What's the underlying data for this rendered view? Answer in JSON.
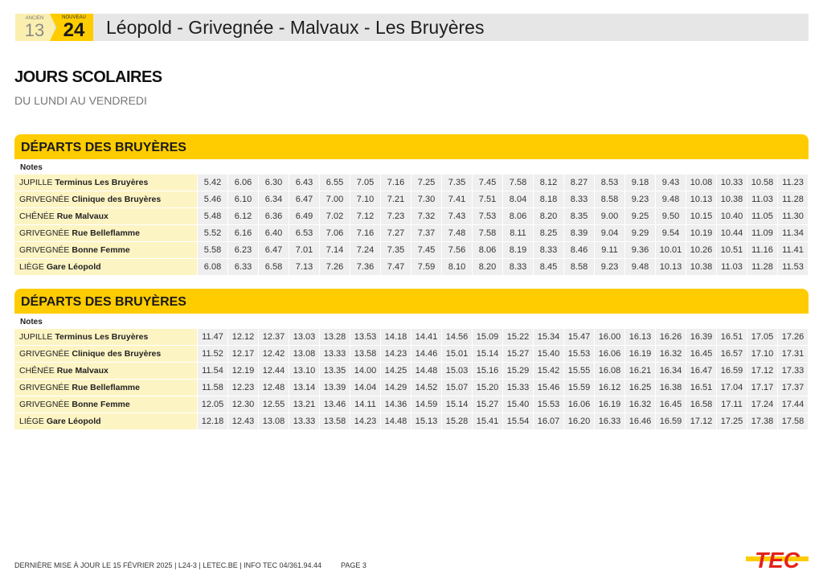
{
  "header": {
    "ancien_label": "ANCIEN",
    "ancien_number": "13",
    "nouveau_label": "NOUVEAU",
    "nouveau_number": "24",
    "title": "Léopold - Grivegnée - Malvaux - Les Bruyères"
  },
  "heading": "JOURS SCOLAIRES",
  "subheading": "DU LUNDI AU VENDREDI",
  "stops": [
    {
      "commune": "JUPILLE",
      "name": "Terminus Les Bruyères"
    },
    {
      "commune": "GRIVEGNÉE",
      "name": "Clinique des Bruyères"
    },
    {
      "commune": "CHÊNÉE",
      "name": "Rue Malvaux"
    },
    {
      "commune": "GRIVEGNÉE",
      "name": "Rue Belleflamme"
    },
    {
      "commune": "GRIVEGNÉE",
      "name": "Bonne Femme"
    },
    {
      "commune": "LIÈGE",
      "name": "Gare Léopold"
    }
  ],
  "sections": [
    {
      "title": "DÉPARTS DES BRUYÈRES",
      "notes_label": "Notes",
      "times": [
        [
          "5.42",
          "6.06",
          "6.30",
          "6.43",
          "6.55",
          "7.05",
          "7.16",
          "7.25",
          "7.35",
          "7.45",
          "7.58",
          "8.12",
          "8.27",
          "8.53",
          "9.18",
          "9.43",
          "10.08",
          "10.33",
          "10.58",
          "11.23"
        ],
        [
          "5.46",
          "6.10",
          "6.34",
          "6.47",
          "7.00",
          "7.10",
          "7.21",
          "7.30",
          "7.41",
          "7.51",
          "8.04",
          "8.18",
          "8.33",
          "8.58",
          "9.23",
          "9.48",
          "10.13",
          "10.38",
          "11.03",
          "11.28"
        ],
        [
          "5.48",
          "6.12",
          "6.36",
          "6.49",
          "7.02",
          "7.12",
          "7.23",
          "7.32",
          "7.43",
          "7.53",
          "8.06",
          "8.20",
          "8.35",
          "9.00",
          "9.25",
          "9.50",
          "10.15",
          "10.40",
          "11.05",
          "11.30"
        ],
        [
          "5.52",
          "6.16",
          "6.40",
          "6.53",
          "7.06",
          "7.16",
          "7.27",
          "7.37",
          "7.48",
          "7.58",
          "8.11",
          "8.25",
          "8.39",
          "9.04",
          "9.29",
          "9.54",
          "10.19",
          "10.44",
          "11.09",
          "11.34"
        ],
        [
          "5.58",
          "6.23",
          "6.47",
          "7.01",
          "7.14",
          "7.24",
          "7.35",
          "7.45",
          "7.56",
          "8.06",
          "8.19",
          "8.33",
          "8.46",
          "9.11",
          "9.36",
          "10.01",
          "10.26",
          "10.51",
          "11.16",
          "11.41"
        ],
        [
          "6.08",
          "6.33",
          "6.58",
          "7.13",
          "7.26",
          "7.36",
          "7.47",
          "7.59",
          "8.10",
          "8.20",
          "8.33",
          "8.45",
          "8.58",
          "9.23",
          "9.48",
          "10.13",
          "10.38",
          "11.03",
          "11.28",
          "11.53"
        ]
      ]
    },
    {
      "title": "DÉPARTS DES BRUYÈRES",
      "notes_label": "Notes",
      "times": [
        [
          "11.47",
          "12.12",
          "12.37",
          "13.03",
          "13.28",
          "13.53",
          "14.18",
          "14.41",
          "14.56",
          "15.09",
          "15.22",
          "15.34",
          "15.47",
          "16.00",
          "16.13",
          "16.26",
          "16.39",
          "16.51",
          "17.05",
          "17.26"
        ],
        [
          "11.52",
          "12.17",
          "12.42",
          "13.08",
          "13.33",
          "13.58",
          "14.23",
          "14.46",
          "15.01",
          "15.14",
          "15.27",
          "15.40",
          "15.53",
          "16.06",
          "16.19",
          "16.32",
          "16.45",
          "16.57",
          "17.10",
          "17.31"
        ],
        [
          "11.54",
          "12.19",
          "12.44",
          "13.10",
          "13.35",
          "14.00",
          "14.25",
          "14.48",
          "15.03",
          "15.16",
          "15.29",
          "15.42",
          "15.55",
          "16.08",
          "16.21",
          "16.34",
          "16.47",
          "16.59",
          "17.12",
          "17.33"
        ],
        [
          "11.58",
          "12.23",
          "12.48",
          "13.14",
          "13.39",
          "14.04",
          "14.29",
          "14.52",
          "15.07",
          "15.20",
          "15.33",
          "15.46",
          "15.59",
          "16.12",
          "16.25",
          "16.38",
          "16.51",
          "17.04",
          "17.17",
          "17.37"
        ],
        [
          "12.05",
          "12.30",
          "12.55",
          "13.21",
          "13.46",
          "14.11",
          "14.36",
          "14.59",
          "15.14",
          "15.27",
          "15.40",
          "15.53",
          "16.06",
          "16.19",
          "16.32",
          "16.45",
          "16.58",
          "17.11",
          "17.24",
          "17.44"
        ],
        [
          "12.18",
          "12.43",
          "13.08",
          "13.33",
          "13.58",
          "14.23",
          "14.48",
          "15.13",
          "15.28",
          "15.41",
          "15.54",
          "16.07",
          "16.20",
          "16.33",
          "16.46",
          "16.59",
          "17.12",
          "17.25",
          "17.38",
          "17.58"
        ]
      ]
    }
  ],
  "footer": {
    "text": "DERNIÈRE MISE À JOUR LE 15 FÉVRIER 2025  |  L24-3  |  LETEC.BE  |  INFO TEC 04/361.94.44",
    "page": "PAGE 3",
    "logo": "TEC"
  },
  "colors": {
    "accent": "#ffcc00",
    "stop_bg": "#fdf4c4",
    "cell_bg": "#efefef",
    "logo_red": "#e2231a"
  }
}
